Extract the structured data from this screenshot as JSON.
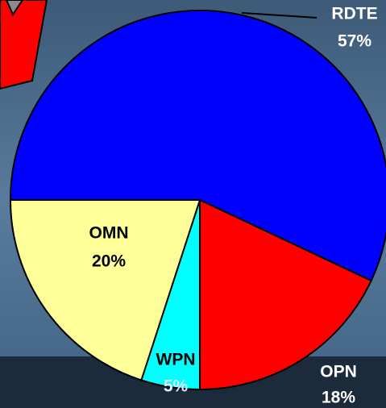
{
  "chart_data": {
    "type": "pie",
    "categories": [
      "RDTE",
      "OPN",
      "WPN",
      "OMN"
    ],
    "values": [
      57,
      18,
      5,
      20
    ],
    "value_labels": [
      "57%",
      "18%",
      "5%",
      "20%"
    ],
    "colors": [
      "#0000ff",
      "#ff0000",
      "#00ffff",
      "#ffff99"
    ]
  }
}
